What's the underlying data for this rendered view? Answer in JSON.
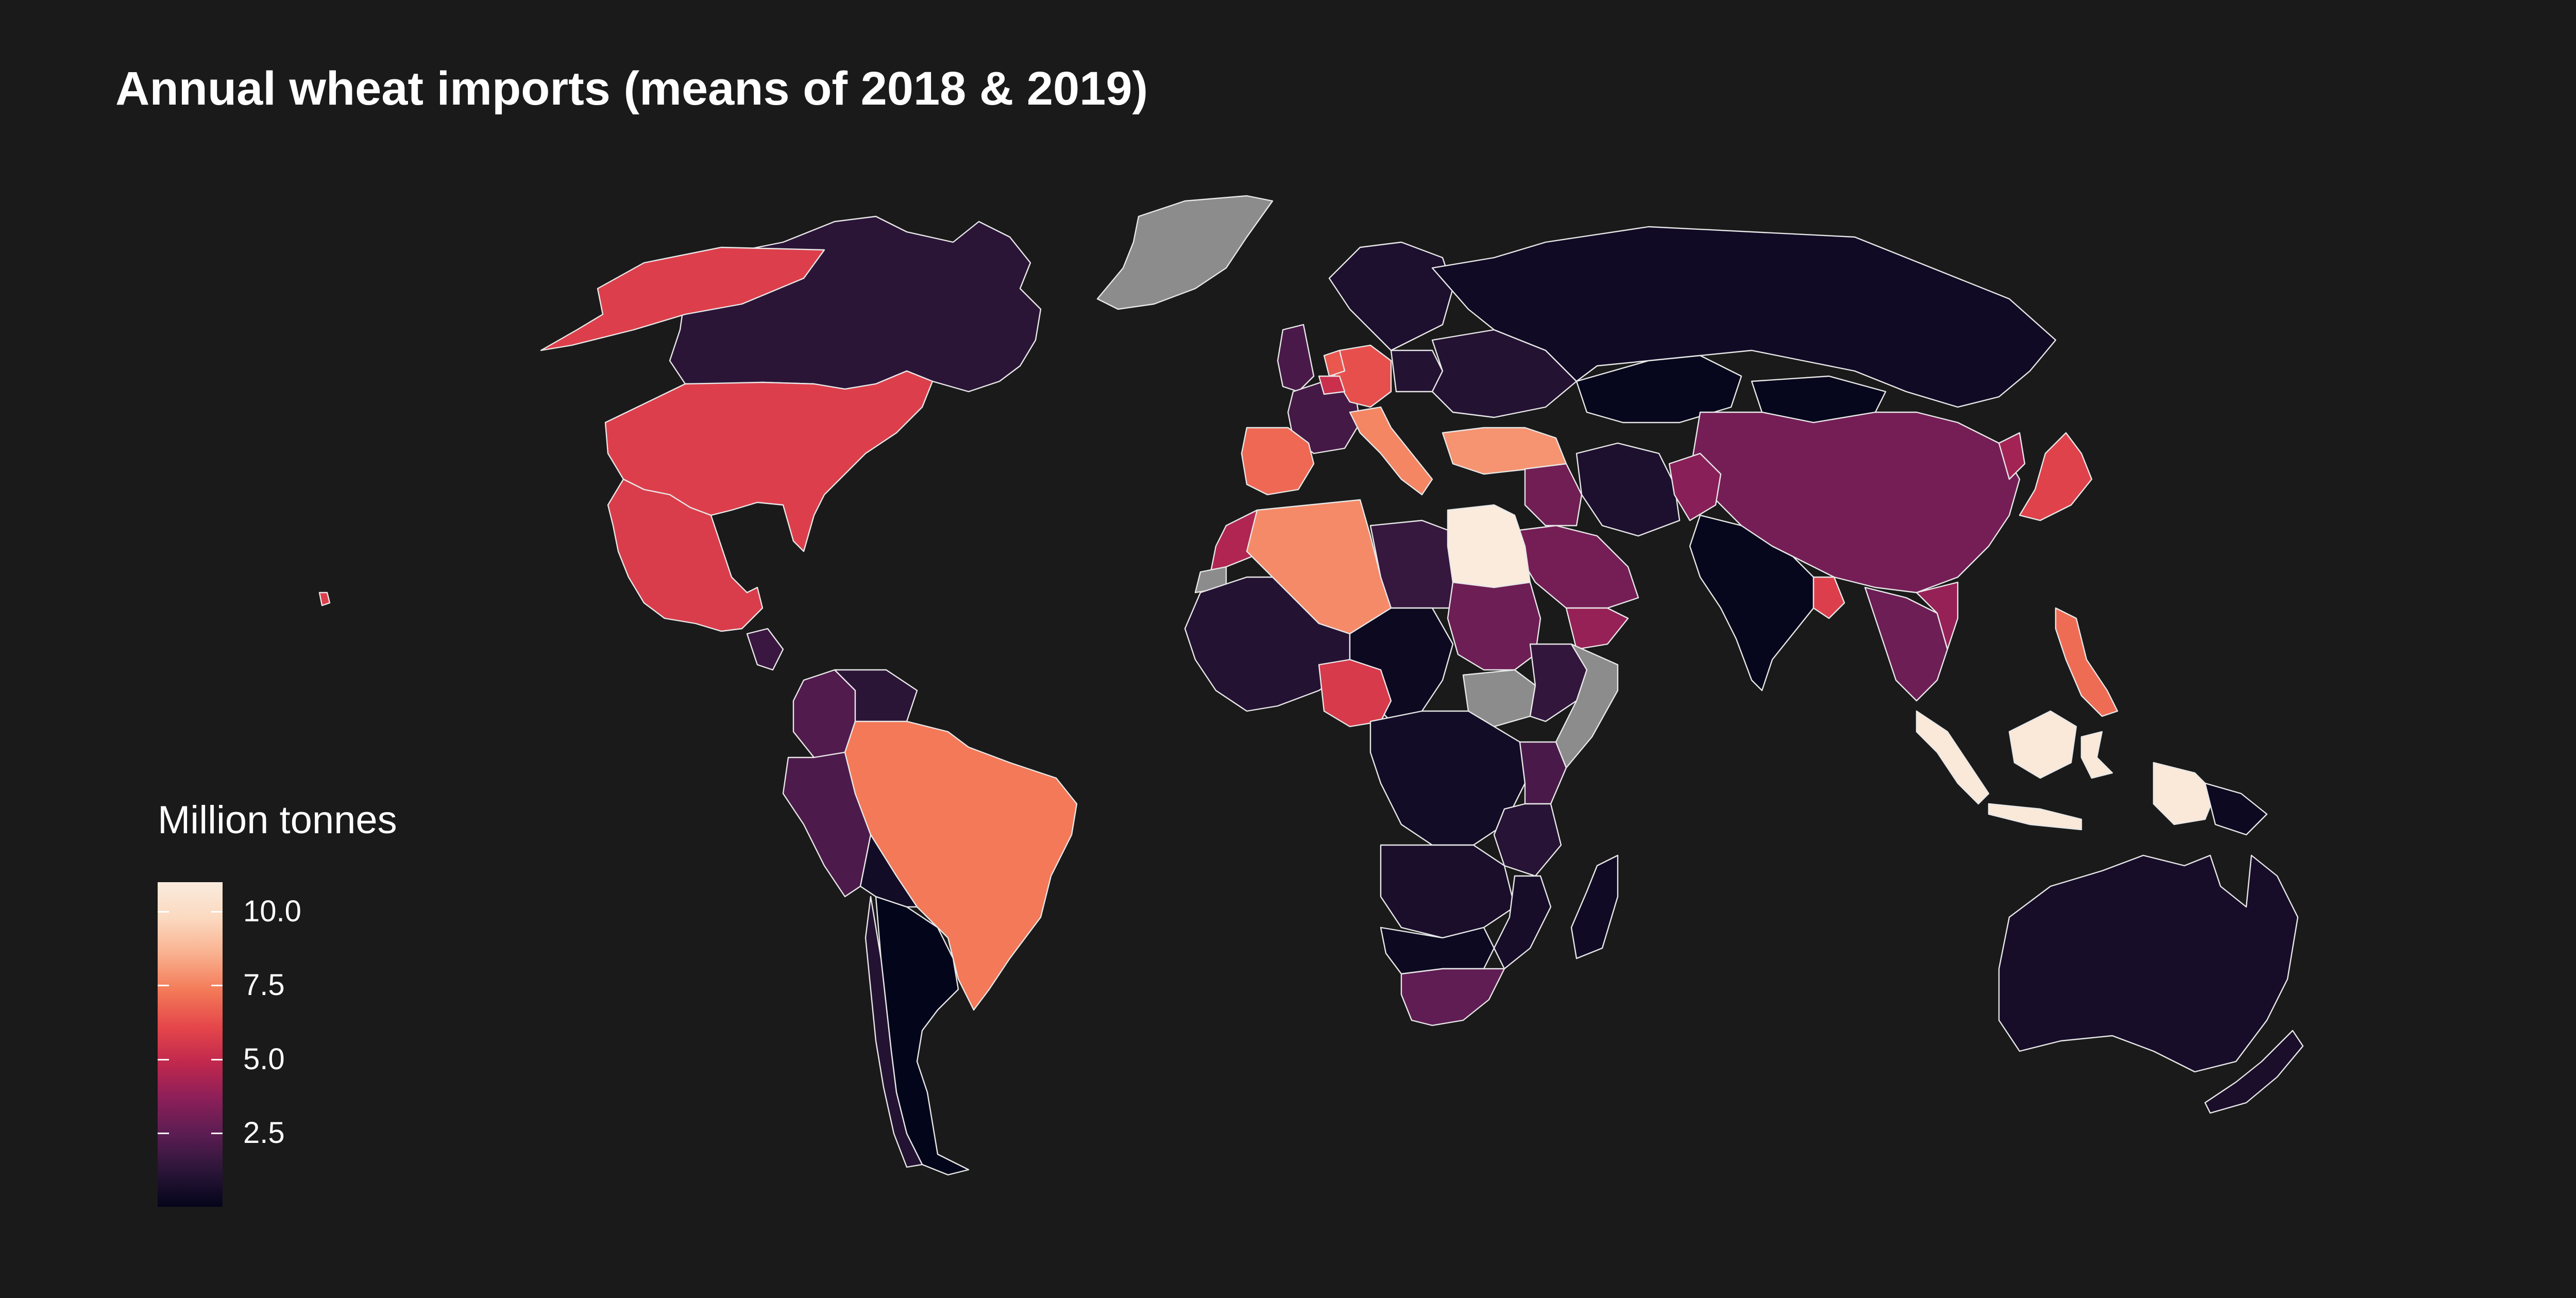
{
  "title": "Annual wheat imports (means of 2018 & 2019)",
  "legend": {
    "title": "Million tonnes",
    "ticks": [
      "10.0",
      "7.5",
      "5.0",
      "2.5"
    ],
    "tick_values": [
      10.0,
      7.5,
      5.0,
      2.5
    ],
    "range": [
      0,
      11
    ],
    "colors": [
      "#03051a",
      "#2b1538",
      "#5a1d52",
      "#8c1f59",
      "#c1284d",
      "#e5474a",
      "#f37a58",
      "#f9b08e",
      "#fbd9c0",
      "#faebdd"
    ],
    "no_data_color": "#8c8c8c"
  },
  "map": {
    "background": "#1a1a1a",
    "border_color": "#e8e8e8"
  },
  "chart_data": {
    "type": "choropleth",
    "title": "Annual wheat imports (means of 2018 & 2019)",
    "unit": "Million tonnes",
    "scale": {
      "min": 0,
      "max": 11,
      "palette": "rocket"
    },
    "regions": [
      {
        "name": "Egypt",
        "value": 11.2
      },
      {
        "name": "Indonesia",
        "value": 10.8
      },
      {
        "name": "Turkey",
        "value": 7.9
      },
      {
        "name": "Algeria",
        "value": 7.7
      },
      {
        "name": "Italy",
        "value": 7.6
      },
      {
        "name": "Brazil",
        "value": 7.3
      },
      {
        "name": "Philippines",
        "value": 7.0
      },
      {
        "name": "Spain",
        "value": 6.9
      },
      {
        "name": "Netherlands",
        "value": 6.5
      },
      {
        "name": "Germany",
        "value": 6.3
      },
      {
        "name": "Japan",
        "value": 5.9
      },
      {
        "name": "Mexico",
        "value": 5.7
      },
      {
        "name": "United States",
        "value": 5.8
      },
      {
        "name": "Nigeria",
        "value": 5.6
      },
      {
        "name": "Bangladesh",
        "value": 5.8
      },
      {
        "name": "Morocco",
        "value": 4.5
      },
      {
        "name": "Vietnam",
        "value": 3.9
      },
      {
        "name": "Saudi Arabia",
        "value": 3.1
      },
      {
        "name": "Yemen",
        "value": 3.9
      },
      {
        "name": "Afghanistan",
        "value": 3.6
      },
      {
        "name": "Iraq",
        "value": 3.0
      },
      {
        "name": "Sudan",
        "value": 2.9
      },
      {
        "name": "China",
        "value": 3.1
      },
      {
        "name": "South Africa",
        "value": 2.6
      },
      {
        "name": "United Kingdom",
        "value": 2.0
      },
      {
        "name": "Belgium",
        "value": 5.2
      },
      {
        "name": "Colombia",
        "value": 2.2
      },
      {
        "name": "Peru",
        "value": 2.1
      },
      {
        "name": "Kenya",
        "value": 2.0
      },
      {
        "name": "Thailand",
        "value": 2.9
      },
      {
        "name": "Malaysia",
        "value": 1.9
      },
      {
        "name": "Canada",
        "value": 1.2
      },
      {
        "name": "Russia",
        "value": 0.4
      },
      {
        "name": "Kazakhstan",
        "value": 0.1
      },
      {
        "name": "India",
        "value": 0.1
      },
      {
        "name": "Australia",
        "value": 0.6
      },
      {
        "name": "Argentina",
        "value": 0.0
      },
      {
        "name": "Libya",
        "value": 1.5
      },
      {
        "name": "Ethiopia",
        "value": 1.4
      },
      {
        "name": "France",
        "value": 1.9
      },
      {
        "name": "Poland",
        "value": 1.0
      },
      {
        "name": "Mongolia",
        "value": 0.1
      },
      {
        "name": "Greenland",
        "value": null
      },
      {
        "name": "Somalia",
        "value": null
      },
      {
        "name": "South Sudan",
        "value": null
      },
      {
        "name": "Western Sahara",
        "value": null
      }
    ]
  }
}
